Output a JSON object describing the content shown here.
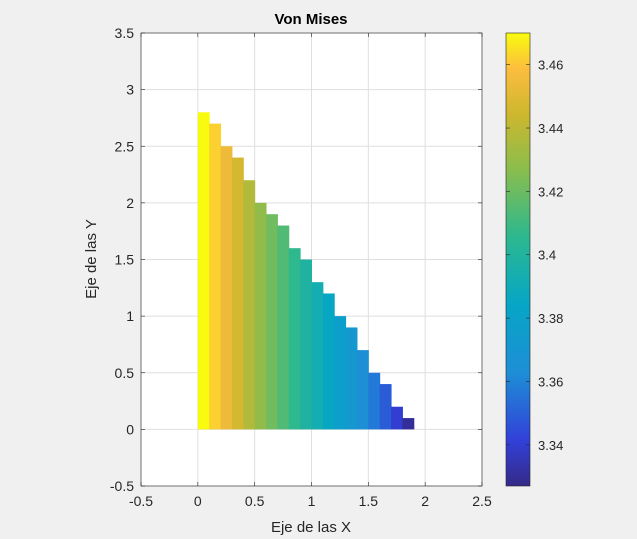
{
  "chart_data": {
    "type": "heatmap",
    "title": "Von Mises",
    "xlabel": "Eje de las X",
    "ylabel": "Eje de las Y",
    "xlim": [
      -0.5,
      2.5
    ],
    "ylim": [
      -0.5,
      3.5
    ],
    "xticks": [
      "-0.5",
      "0",
      "0.5",
      "1",
      "1.5",
      "2",
      "2.5"
    ],
    "xtick_values": [
      -0.5,
      0,
      0.5,
      1,
      1.5,
      2,
      2.5
    ],
    "yticks": [
      "-0.5",
      "0",
      "0.5",
      "1",
      "1.5",
      "2",
      "2.5",
      "3",
      "3.5"
    ],
    "ytick_values": [
      -0.5,
      0,
      0.5,
      1,
      1.5,
      2,
      2.5,
      3,
      3.5
    ],
    "grid": true,
    "colormap": "parula",
    "colorbar": {
      "clim": [
        3.327,
        3.47
      ],
      "ticks": [
        "3.34",
        "3.36",
        "3.38",
        "3.4",
        "3.42",
        "3.44",
        "3.46"
      ],
      "tick_values": [
        3.34,
        3.36,
        3.38,
        3.4,
        3.42,
        3.44,
        3.46
      ]
    },
    "cells": [
      {
        "x0": 0.0,
        "x1": 0.1,
        "ytop": 2.8,
        "value": 3.47
      },
      {
        "x0": 0.1,
        "x1": 0.2,
        "ytop": 2.7,
        "value": 3.462
      },
      {
        "x0": 0.2,
        "x1": 0.3,
        "ytop": 2.5,
        "value": 3.454
      },
      {
        "x0": 0.3,
        "x1": 0.4,
        "ytop": 2.4,
        "value": 3.446
      },
      {
        "x0": 0.4,
        "x1": 0.5,
        "ytop": 2.2,
        "value": 3.437
      },
      {
        "x0": 0.5,
        "x1": 0.6,
        "ytop": 2.0,
        "value": 3.429
      },
      {
        "x0": 0.6,
        "x1": 0.7,
        "ytop": 1.9,
        "value": 3.421
      },
      {
        "x0": 0.7,
        "x1": 0.8,
        "ytop": 1.8,
        "value": 3.414
      },
      {
        "x0": 0.8,
        "x1": 0.9,
        "ytop": 1.6,
        "value": 3.406
      },
      {
        "x0": 0.9,
        "x1": 1.0,
        "ytop": 1.5,
        "value": 3.399
      },
      {
        "x0": 1.0,
        "x1": 1.1,
        "ytop": 1.3,
        "value": 3.392
      },
      {
        "x0": 1.1,
        "x1": 1.2,
        "ytop": 1.2,
        "value": 3.385
      },
      {
        "x0": 1.2,
        "x1": 1.3,
        "ytop": 1.0,
        "value": 3.378
      },
      {
        "x0": 1.3,
        "x1": 1.4,
        "ytop": 0.9,
        "value": 3.371
      },
      {
        "x0": 1.4,
        "x1": 1.5,
        "ytop": 0.7,
        "value": 3.364
      },
      {
        "x0": 1.5,
        "x1": 1.6,
        "ytop": 0.5,
        "value": 3.357
      },
      {
        "x0": 1.6,
        "x1": 1.7,
        "ytop": 0.4,
        "value": 3.349
      },
      {
        "x0": 1.7,
        "x1": 1.8,
        "ytop": 0.2,
        "value": 3.34
      },
      {
        "x0": 1.8,
        "x1": 1.9,
        "ytop": 0.1,
        "value": 3.33
      }
    ]
  }
}
